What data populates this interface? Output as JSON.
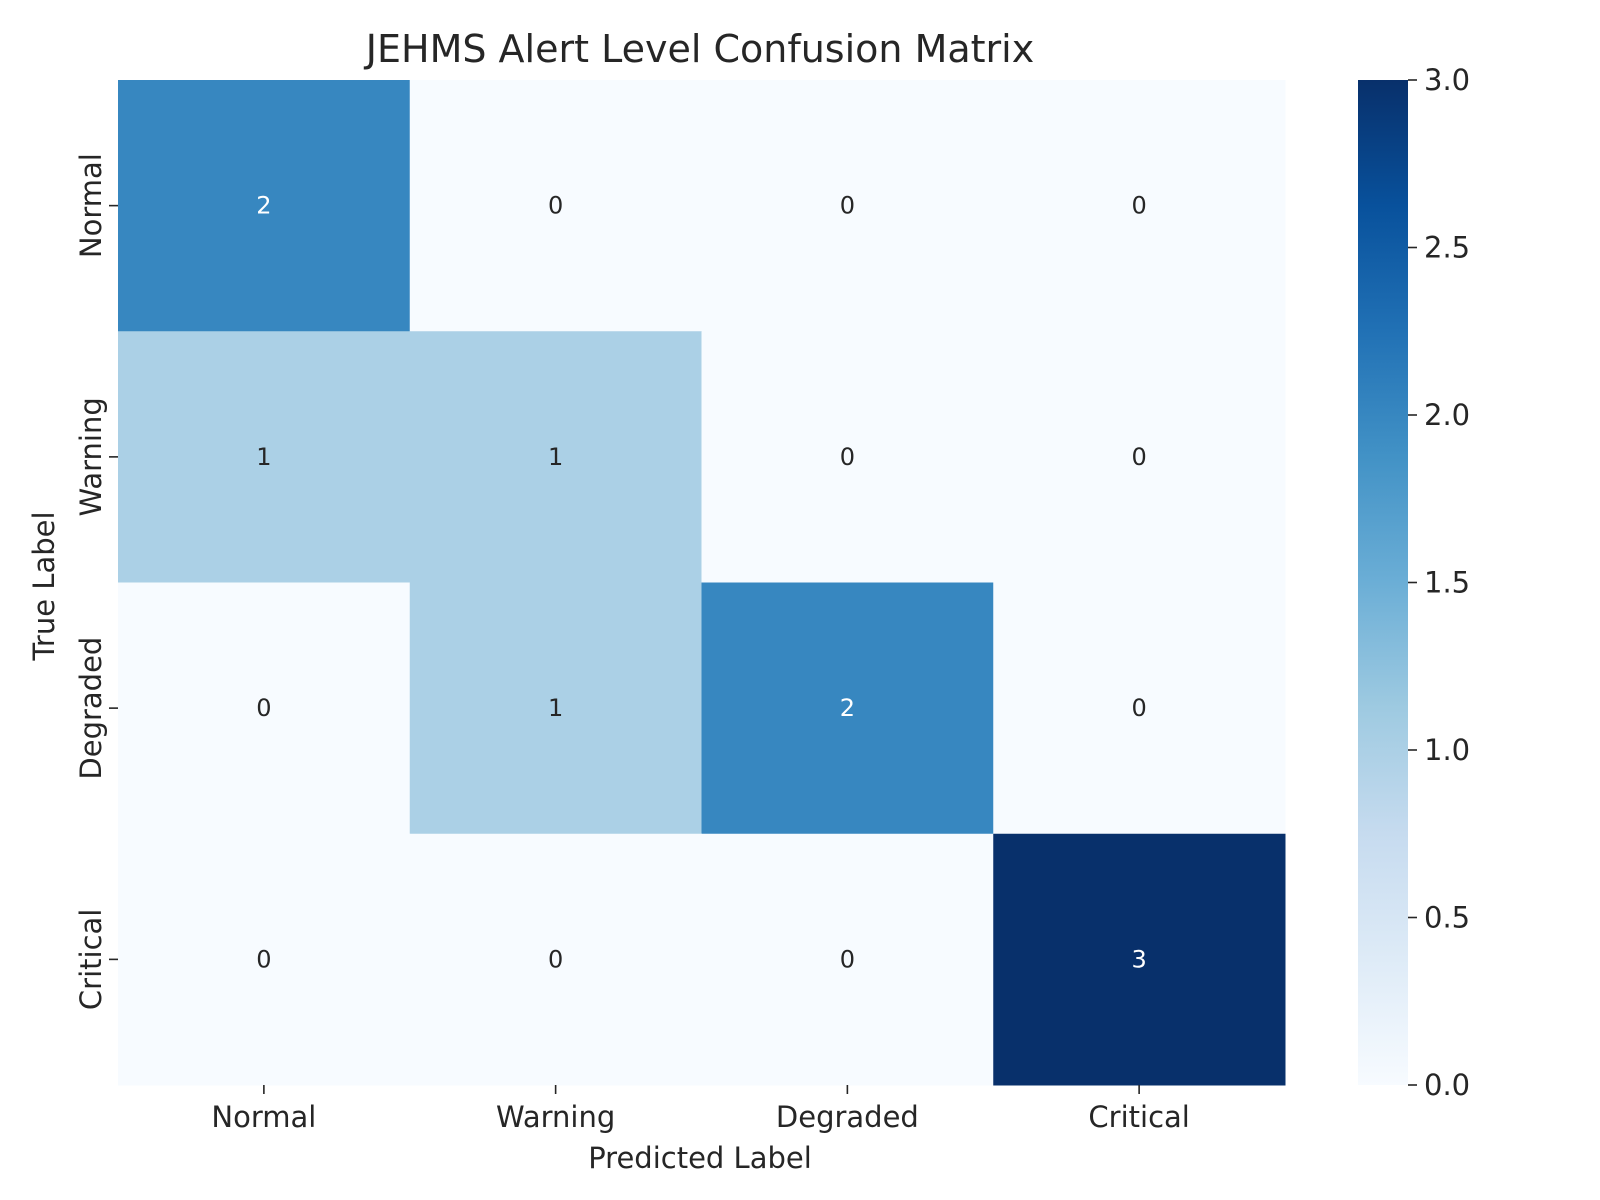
{
  "chart_data": {
    "type": "heatmap",
    "title": "JEHMS Alert Level Confusion Matrix",
    "xlabel": "Predicted Label",
    "ylabel": "True Label",
    "x_categories": [
      "Normal",
      "Warning",
      "Degraded",
      "Critical"
    ],
    "y_categories": [
      "Normal",
      "Warning",
      "Degraded",
      "Critical"
    ],
    "values": [
      [
        2,
        0,
        0,
        0
      ],
      [
        1,
        1,
        0,
        0
      ],
      [
        0,
        1,
        2,
        0
      ],
      [
        0,
        0,
        0,
        3
      ]
    ],
    "colormap": "Blues",
    "vmin": 0,
    "vmax": 3,
    "colorbar_ticks": [
      "0.0",
      "0.5",
      "1.0",
      "1.5",
      "2.0",
      "2.5",
      "3.0"
    ],
    "colors": {
      "low": "#f7fbff",
      "high": "#08306b",
      "text_dark": "#262626",
      "text_light": "#ffffff"
    }
  }
}
